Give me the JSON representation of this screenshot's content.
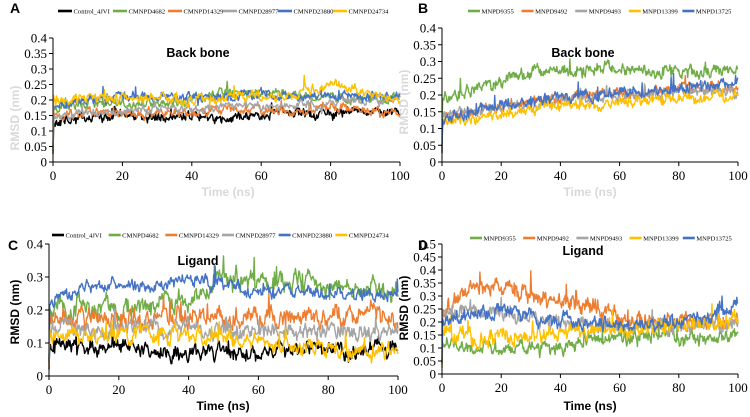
{
  "colors": {
    "black": "#000000",
    "green": "#70ad47",
    "orange": "#ed7d31",
    "gray": "#a5a5a5",
    "blue": "#4472c4",
    "yellow": "#ffc000",
    "faded_axis_text": "#d9d9d9"
  },
  "chart_data": [
    {
      "panel": "A",
      "type": "line",
      "title": "Back bone",
      "xlabel": "Time (ns)",
      "ylabel": "RMSD (nm)",
      "axis_title_color": "#d9d9d9",
      "xlim": [
        0,
        100
      ],
      "ylim": [
        0,
        0.4
      ],
      "xticks": [
        0,
        20,
        40,
        60,
        80,
        100
      ],
      "yticks": [
        0,
        0.05,
        0.1,
        0.15,
        0.2,
        0.25,
        0.3,
        0.35,
        0.4
      ],
      "ytick_labels": [
        "0",
        "0.05",
        "0.1",
        "0.15",
        "0.2",
        "0.25",
        "0.3",
        "0.35",
        "0.4"
      ],
      "legend_position": "top",
      "series": [
        {
          "name": "Control_4JVI",
          "color": "#000000",
          "x": [
            0,
            10,
            20,
            30,
            40,
            50,
            60,
            70,
            80,
            90,
            100
          ],
          "values": [
            0.13,
            0.14,
            0.15,
            0.14,
            0.15,
            0.14,
            0.15,
            0.16,
            0.15,
            0.17,
            0.16
          ],
          "noise": 0.013,
          "spikes": 0.02
        },
        {
          "name": "CMNPD4682",
          "color": "#70ad47",
          "x": [
            0,
            10,
            20,
            30,
            40,
            50,
            60,
            70,
            80,
            90,
            100
          ],
          "values": [
            0.18,
            0.19,
            0.19,
            0.19,
            0.2,
            0.23,
            0.22,
            0.21,
            0.21,
            0.2,
            0.21
          ],
          "noise": 0.012,
          "spikes": 0.03
        },
        {
          "name": "CMNPD14329",
          "color": "#ed7d31",
          "x": [
            0,
            10,
            20,
            30,
            40,
            50,
            60,
            70,
            80,
            90,
            100
          ],
          "values": [
            0.15,
            0.16,
            0.15,
            0.16,
            0.16,
            0.17,
            0.17,
            0.17,
            0.18,
            0.17,
            0.16
          ],
          "noise": 0.012,
          "spikes": 0.02
        },
        {
          "name": "CMNPD28977",
          "color": "#a5a5a5",
          "x": [
            0,
            10,
            20,
            30,
            40,
            50,
            60,
            70,
            80,
            90,
            100
          ],
          "values": [
            0.15,
            0.16,
            0.16,
            0.17,
            0.17,
            0.18,
            0.18,
            0.18,
            0.19,
            0.2,
            0.2
          ],
          "noise": 0.011,
          "spikes": 0.02
        },
        {
          "name": "CMNPD23880",
          "color": "#4472c4",
          "x": [
            0,
            10,
            20,
            30,
            40,
            50,
            60,
            70,
            80,
            90,
            100
          ],
          "values": [
            0.18,
            0.2,
            0.21,
            0.21,
            0.21,
            0.21,
            0.22,
            0.21,
            0.21,
            0.21,
            0.21
          ],
          "noise": 0.012,
          "spikes": 0.03
        },
        {
          "name": "CMNPD24734",
          "color": "#ffc000",
          "x": [
            0,
            10,
            20,
            30,
            40,
            50,
            60,
            70,
            80,
            90,
            100
          ],
          "values": [
            0.2,
            0.21,
            0.2,
            0.21,
            0.2,
            0.21,
            0.21,
            0.22,
            0.25,
            0.23,
            0.2
          ],
          "noise": 0.012,
          "spikes": 0.03
        }
      ]
    },
    {
      "panel": "B",
      "type": "line",
      "title": "Back bone",
      "xlabel": "Time (ns)",
      "ylabel": "RMSD (nm)",
      "axis_title_color": "#d9d9d9",
      "xlim": [
        0,
        100
      ],
      "ylim": [
        0,
        0.4
      ],
      "xticks": [
        0,
        20,
        40,
        60,
        80,
        100
      ],
      "yticks": [
        0,
        0.05,
        0.1,
        0.15,
        0.2,
        0.25,
        0.3,
        0.35,
        0.4
      ],
      "ytick_labels": [
        "0",
        "0.05",
        "0.1",
        "0.15",
        "0.2",
        "0.25",
        "0.3",
        "0.35",
        "0.4"
      ],
      "legend_position": "top",
      "series": [
        {
          "name": "MNPD9355",
          "color": "#70ad47",
          "x": [
            0,
            10,
            20,
            30,
            40,
            50,
            60,
            70,
            80,
            90,
            100
          ],
          "values": [
            0.2,
            0.21,
            0.24,
            0.26,
            0.27,
            0.28,
            0.28,
            0.27,
            0.27,
            0.27,
            0.28
          ],
          "noise": 0.015,
          "spikes": 0.04
        },
        {
          "name": "MNPD9492",
          "color": "#ed7d31",
          "x": [
            0,
            10,
            20,
            30,
            40,
            50,
            60,
            70,
            80,
            90,
            100
          ],
          "values": [
            0.14,
            0.15,
            0.17,
            0.18,
            0.19,
            0.2,
            0.21,
            0.21,
            0.22,
            0.22,
            0.22
          ],
          "noise": 0.012,
          "spikes": 0.03
        },
        {
          "name": "MNPD9493",
          "color": "#a5a5a5",
          "x": [
            0,
            10,
            20,
            30,
            40,
            50,
            60,
            70,
            80,
            90,
            100
          ],
          "values": [
            0.14,
            0.15,
            0.16,
            0.17,
            0.18,
            0.19,
            0.2,
            0.2,
            0.21,
            0.21,
            0.21
          ],
          "noise": 0.012,
          "spikes": 0.02
        },
        {
          "name": "MNPD13399",
          "color": "#ffc000",
          "x": [
            0,
            10,
            20,
            30,
            40,
            50,
            60,
            70,
            80,
            90,
            100
          ],
          "values": [
            0.12,
            0.13,
            0.14,
            0.16,
            0.17,
            0.17,
            0.18,
            0.18,
            0.19,
            0.19,
            0.2
          ],
          "noise": 0.012,
          "spikes": 0.02
        },
        {
          "name": "MNPD13725",
          "color": "#4472c4",
          "x": [
            0,
            10,
            20,
            30,
            40,
            50,
            60,
            70,
            80,
            90,
            100
          ],
          "values": [
            0.13,
            0.15,
            0.17,
            0.18,
            0.19,
            0.2,
            0.21,
            0.21,
            0.22,
            0.23,
            0.24
          ],
          "noise": 0.012,
          "spikes": 0.03
        }
      ]
    },
    {
      "panel": "C",
      "type": "line",
      "title": "Ligand",
      "xlabel": "Time (ns)",
      "ylabel": "RMSD (nm)",
      "axis_title_color": "#000000",
      "xlim": [
        0,
        100
      ],
      "ylim": [
        0,
        0.4
      ],
      "xticks": [
        0,
        20,
        40,
        60,
        80,
        100
      ],
      "yticks": [
        0,
        0.1,
        0.2,
        0.3,
        0.4
      ],
      "ytick_labels": [
        "0",
        "0.1",
        "0.2",
        "0.3",
        "0.4"
      ],
      "legend_position": "top",
      "series": [
        {
          "name": "Control_4JVI",
          "color": "#000000",
          "x": [
            0,
            10,
            20,
            30,
            40,
            50,
            60,
            70,
            80,
            90,
            100
          ],
          "values": [
            0.1,
            0.09,
            0.09,
            0.08,
            0.07,
            0.08,
            0.07,
            0.08,
            0.08,
            0.08,
            0.08
          ],
          "noise": 0.02,
          "spikes": 0.04
        },
        {
          "name": "CMNPD4682",
          "color": "#70ad47",
          "x": [
            0,
            10,
            20,
            30,
            40,
            50,
            60,
            70,
            80,
            90,
            100
          ],
          "values": [
            0.2,
            0.21,
            0.2,
            0.21,
            0.22,
            0.3,
            0.28,
            0.29,
            0.27,
            0.26,
            0.25
          ],
          "noise": 0.025,
          "spikes": 0.05
        },
        {
          "name": "CMNPD14329",
          "color": "#ed7d31",
          "x": [
            0,
            10,
            20,
            30,
            40,
            50,
            60,
            70,
            80,
            90,
            100
          ],
          "values": [
            0.17,
            0.18,
            0.18,
            0.18,
            0.18,
            0.17,
            0.18,
            0.18,
            0.18,
            0.18,
            0.18
          ],
          "noise": 0.025,
          "spikes": 0.05
        },
        {
          "name": "CMNPD28977",
          "color": "#a5a5a5",
          "x": [
            0,
            10,
            20,
            30,
            40,
            50,
            60,
            70,
            80,
            90,
            100
          ],
          "values": [
            0.15,
            0.14,
            0.14,
            0.15,
            0.14,
            0.13,
            0.13,
            0.14,
            0.14,
            0.13,
            0.13
          ],
          "noise": 0.02,
          "spikes": 0.04
        },
        {
          "name": "CMNPD23880",
          "color": "#4472c4",
          "x": [
            0,
            10,
            20,
            30,
            40,
            50,
            60,
            70,
            80,
            90,
            100
          ],
          "values": [
            0.22,
            0.27,
            0.27,
            0.27,
            0.29,
            0.28,
            0.25,
            0.25,
            0.25,
            0.25,
            0.25
          ],
          "noise": 0.015,
          "spikes": 0.04
        },
        {
          "name": "CMNPD24734",
          "color": "#ffc000",
          "x": [
            0,
            10,
            20,
            30,
            40,
            50,
            60,
            70,
            80,
            90,
            100
          ],
          "values": [
            0.12,
            0.12,
            0.13,
            0.13,
            0.12,
            0.12,
            0.11,
            0.09,
            0.08,
            0.07,
            0.07
          ],
          "noise": 0.02,
          "spikes": 0.04
        }
      ]
    },
    {
      "panel": "D",
      "type": "line",
      "title": "Ligand",
      "xlabel": "Time (ns)",
      "ylabel": "RMSD (nm)",
      "axis_title_color": "#000000",
      "xlim": [
        0,
        100
      ],
      "ylim": [
        0,
        0.5
      ],
      "xticks": [
        0,
        20,
        40,
        60,
        80,
        100
      ],
      "yticks": [
        0,
        0.05,
        0.1,
        0.15,
        0.2,
        0.25,
        0.3,
        0.35,
        0.4,
        0.45,
        0.5
      ],
      "ytick_labels": [
        "0",
        "0.05",
        "0.1",
        "0.15",
        "0.2",
        "0.25",
        "0.3",
        "0.35",
        "0.4",
        "0.45",
        "0.5"
      ],
      "legend_position": "top",
      "series": [
        {
          "name": "MNPD9355",
          "color": "#70ad47",
          "x": [
            0,
            10,
            20,
            30,
            40,
            50,
            60,
            70,
            80,
            90,
            100
          ],
          "values": [
            0.12,
            0.1,
            0.1,
            0.1,
            0.1,
            0.13,
            0.13,
            0.15,
            0.14,
            0.14,
            0.15
          ],
          "noise": 0.02,
          "spikes": 0.04
        },
        {
          "name": "MNPD9492",
          "color": "#ed7d31",
          "x": [
            0,
            10,
            20,
            30,
            40,
            50,
            60,
            70,
            80,
            90,
            100
          ],
          "values": [
            0.22,
            0.34,
            0.35,
            0.3,
            0.28,
            0.26,
            0.22,
            0.2,
            0.2,
            0.2,
            0.2
          ],
          "noise": 0.025,
          "spikes": 0.05
        },
        {
          "name": "MNPD9493",
          "color": "#a5a5a5",
          "x": [
            0,
            10,
            20,
            30,
            40,
            50,
            60,
            70,
            80,
            90,
            100
          ],
          "values": [
            0.22,
            0.25,
            0.24,
            0.22,
            0.2,
            0.19,
            0.18,
            0.18,
            0.18,
            0.19,
            0.2
          ],
          "noise": 0.02,
          "spikes": 0.04
        },
        {
          "name": "MNPD13399",
          "color": "#ffc000",
          "x": [
            0,
            10,
            20,
            30,
            40,
            50,
            60,
            70,
            80,
            90,
            100
          ],
          "values": [
            0.15,
            0.15,
            0.14,
            0.15,
            0.16,
            0.17,
            0.18,
            0.18,
            0.19,
            0.2,
            0.21
          ],
          "noise": 0.025,
          "spikes": 0.05
        },
        {
          "name": "MNPD13725",
          "color": "#4472c4",
          "x": [
            0,
            10,
            20,
            30,
            40,
            50,
            60,
            70,
            80,
            90,
            100
          ],
          "values": [
            0.2,
            0.22,
            0.25,
            0.23,
            0.2,
            0.2,
            0.19,
            0.19,
            0.2,
            0.22,
            0.28
          ],
          "noise": 0.02,
          "spikes": 0.05
        }
      ]
    }
  ]
}
